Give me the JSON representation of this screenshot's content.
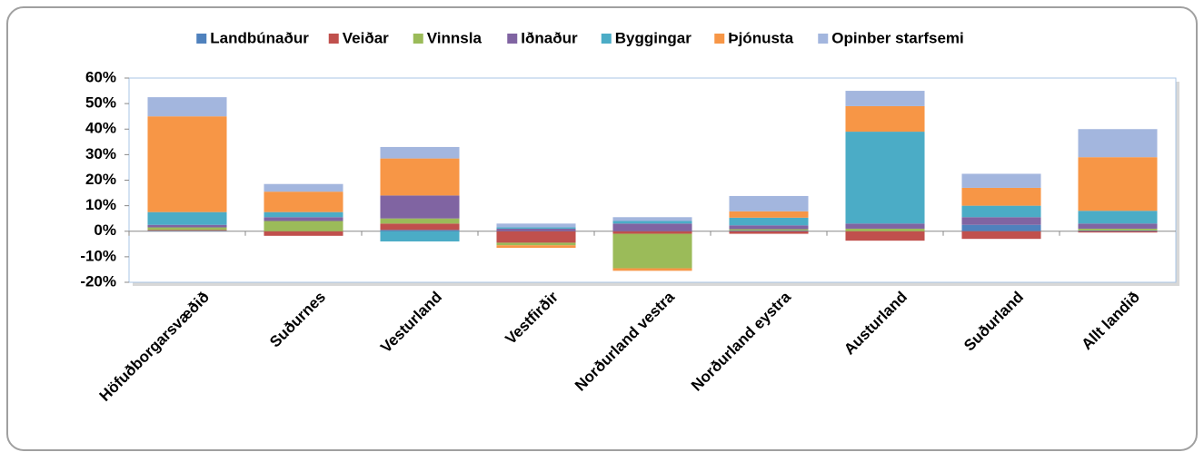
{
  "chart_data": {
    "type": "stacked_bar",
    "categories": [
      "Höfuðborgarsvæðið",
      "Suðurnes",
      "Vesturland",
      "Vestfirðir",
      "Norðurland vestra",
      "Norðurland eystra",
      "Austurland",
      "Suðurland",
      "Allt landið"
    ],
    "series": [
      {
        "name": "Landbúnaður",
        "color": "#4f81bd",
        "values": [
          0.2,
          0,
          0.5,
          0,
          0,
          0.3,
          0,
          2.5,
          0.3
        ]
      },
      {
        "name": "Veiðar",
        "color": "#c0504d",
        "values": [
          0.3,
          -1.8,
          2.5,
          -4.5,
          -1,
          -1,
          -3.7,
          -3,
          -0.5
        ]
      },
      {
        "name": "Vinnsla",
        "color": "#9bbb59",
        "values": [
          1,
          4,
          2,
          -1,
          -13.5,
          0.5,
          1,
          0,
          0.7
        ]
      },
      {
        "name": "Iðnaður",
        "color": "#8064a2",
        "values": [
          1,
          1.5,
          9,
          1,
          3,
          1.5,
          2,
          3,
          2
        ]
      },
      {
        "name": "Byggingar",
        "color": "#4bacc6",
        "values": [
          5,
          2,
          -4,
          0.5,
          1,
          3,
          36,
          4.5,
          5
        ]
      },
      {
        "name": "Þjónusta",
        "color": "#f79646",
        "values": [
          37.5,
          8,
          14.5,
          -1,
          -1,
          2.5,
          10,
          7,
          21
        ]
      },
      {
        "name": "Opinber starfsemi",
        "color": "#a3b6de",
        "values": [
          7.5,
          3,
          4.5,
          1.5,
          1.5,
          6,
          6,
          5.5,
          11
        ]
      }
    ],
    "ylim": [
      -20,
      60
    ],
    "yticks": [
      {
        "value": -20,
        "label": "-20%"
      },
      {
        "value": -10,
        "label": "-10%"
      },
      {
        "value": 0,
        "label": "0%"
      },
      {
        "value": 10,
        "label": "10%"
      },
      {
        "value": 20,
        "label": "20%"
      },
      {
        "value": 30,
        "label": "30%"
      },
      {
        "value": 40,
        "label": "40%"
      },
      {
        "value": 50,
        "label": "50%"
      },
      {
        "value": 60,
        "label": "60%"
      }
    ],
    "legend": "top"
  }
}
